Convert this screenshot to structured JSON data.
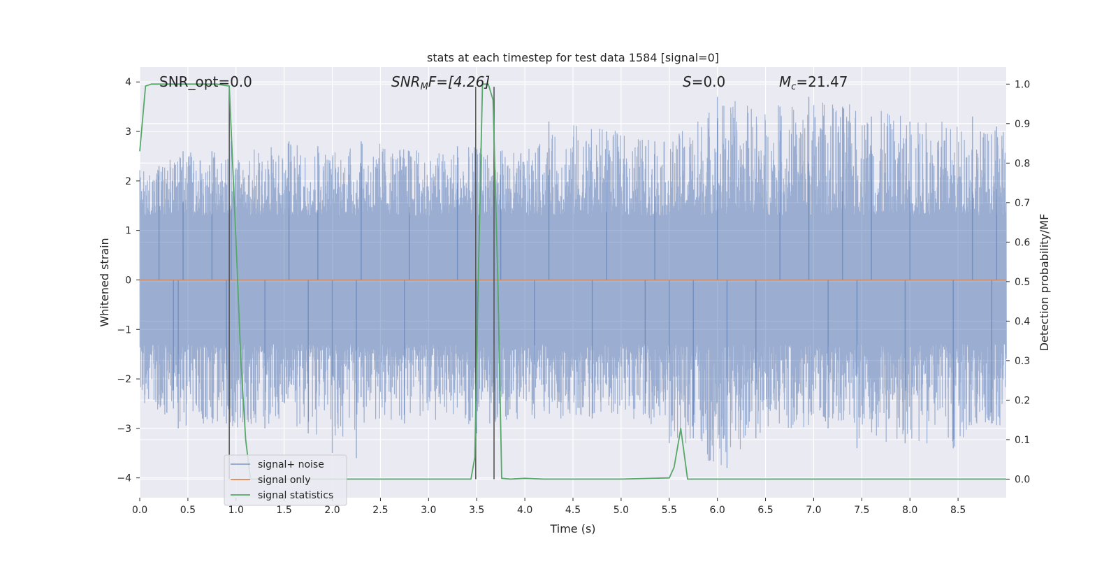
{
  "chart_data": {
    "type": "line",
    "title": "stats at each timestep for test data 1584 [signal=0]",
    "xlabel": "Time (s)",
    "ylabel_left": "Whitened strain",
    "ylabel_right": "Detection probability/MF",
    "xlim": [
      0.0,
      9.0
    ],
    "ylim_left": [
      -4.4,
      4.3
    ],
    "ylim_right": [
      -0.047,
      1.043
    ],
    "x_ticks": [
      0.0,
      0.5,
      1.0,
      1.5,
      2.0,
      2.5,
      3.0,
      3.5,
      4.0,
      4.5,
      5.0,
      5.5,
      6.0,
      6.5,
      7.0,
      7.5,
      8.0,
      8.5
    ],
    "x_tick_labels": [
      "0.0",
      "0.5",
      "1.0",
      "1.5",
      "2.0",
      "2.5",
      "3.0",
      "3.5",
      "4.0",
      "4.5",
      "5.0",
      "5.5",
      "6.0",
      "6.5",
      "7.0",
      "7.5",
      "8.0",
      "8.5"
    ],
    "y_left_ticks": [
      4,
      3,
      2,
      1,
      0,
      -1,
      -2,
      -3,
      -4
    ],
    "y_left_tick_labels": [
      "4",
      "3",
      "2",
      "1",
      "0",
      "−1",
      "−2",
      "−3",
      "−4"
    ],
    "y_right_ticks": [
      1.0,
      0.9,
      0.8,
      0.7,
      0.6,
      0.5,
      0.4,
      0.3,
      0.2,
      0.1,
      0.0
    ],
    "y_right_tick_labels": [
      "1.0",
      "0.9",
      "0.8",
      "0.7",
      "0.6",
      "0.5",
      "0.4",
      "0.3",
      "0.2",
      "0.1",
      "0.0"
    ],
    "grid": true,
    "legend_placement": "lower-left",
    "annotations": {
      "snr_opt": "SNR_opt=0.0",
      "snr_mf_main": "SNR",
      "snr_mf_sub": "M",
      "snr_mf_rest": "F=[4.26]",
      "s_italic": "S",
      "s_rest": "=0.0",
      "mc_main": "M",
      "mc_sub": "c",
      "mc_rest": "=21.47"
    },
    "noise_envelope": {
      "x": [
        0.0,
        0.5,
        1.0,
        1.5,
        2.0,
        2.5,
        3.0,
        3.5,
        4.0,
        4.5,
        5.0,
        5.5,
        6.0,
        6.5,
        7.0,
        7.5,
        8.0,
        8.5,
        9.0
      ],
      "upper": [
        2.3,
        2.6,
        2.6,
        2.8,
        2.7,
        2.8,
        2.6,
        2.7,
        2.6,
        3.2,
        3.0,
        2.8,
        3.7,
        3.5,
        3.7,
        3.5,
        3.3,
        3.2,
        3.0
      ],
      "lower": [
        -2.5,
        -3.0,
        -3.0,
        -2.9,
        -3.3,
        -2.9,
        -2.8,
        -3.0,
        -2.8,
        -2.8,
        -2.7,
        -3.2,
        -3.8,
        -3.1,
        -3.0,
        -3.4,
        -3.3,
        -3.4,
        -2.9
      ]
    },
    "series": [
      {
        "name": "signal+ noise",
        "color": "#4c72b0",
        "axis": "left",
        "spikes": {
          "up": [
            [
              0.2,
              2.3
            ],
            [
              0.45,
              2.6
            ],
            [
              0.75,
              2.6
            ],
            [
              0.95,
              2.8
            ],
            [
              1.55,
              2.8
            ],
            [
              1.85,
              2.7
            ],
            [
              2.3,
              2.8
            ],
            [
              2.8,
              2.6
            ],
            [
              3.3,
              2.7
            ],
            [
              3.75,
              2.6
            ],
            [
              4.25,
              3.2
            ],
            [
              4.85,
              3.0
            ],
            [
              5.35,
              2.8
            ],
            [
              6.0,
              3.7
            ],
            [
              6.65,
              3.5
            ],
            [
              6.95,
              3.7
            ],
            [
              7.3,
              3.5
            ],
            [
              7.6,
              3.3
            ],
            [
              8.0,
              3.2
            ],
            [
              8.65,
              3.3
            ],
            [
              8.9,
              3.1
            ]
          ],
          "down": [
            [
              0.35,
              -2.6
            ],
            [
              0.4,
              -3.0
            ],
            [
              0.9,
              -2.9
            ],
            [
              1.3,
              -3.0
            ],
            [
              1.75,
              -3.1
            ],
            [
              2.0,
              -3.5
            ],
            [
              2.25,
              -3.6
            ],
            [
              2.75,
              -2.9
            ],
            [
              3.5,
              -3.1
            ],
            [
              4.1,
              -2.8
            ],
            [
              4.7,
              -2.8
            ],
            [
              5.25,
              -2.7
            ],
            [
              5.5,
              -3.3
            ],
            [
              5.75,
              -3.2
            ],
            [
              6.1,
              -3.8
            ],
            [
              6.4,
              -3.2
            ],
            [
              7.15,
              -3.0
            ],
            [
              7.45,
              -3.4
            ],
            [
              7.95,
              -3.3
            ],
            [
              8.45,
              -3.4
            ],
            [
              8.85,
              -2.9
            ]
          ]
        }
      },
      {
        "name": "signal only",
        "color": "#dd8452",
        "axis": "left",
        "x": [
          0.0,
          9.0
        ],
        "y": [
          0.0,
          0.0
        ]
      },
      {
        "name": "signal statistics",
        "color": "#55a868",
        "axis": "right",
        "x": [
          0.0,
          0.06,
          0.12,
          0.2,
          0.5,
          0.8,
          0.93,
          1.0,
          1.05,
          1.1,
          1.15,
          1.2,
          3.0,
          3.44,
          3.48,
          3.52,
          3.56,
          3.62,
          3.67,
          3.72,
          3.76,
          3.85,
          4.0,
          4.2,
          5.0,
          5.5,
          5.55,
          5.62,
          5.69,
          5.75,
          6.0,
          7.0,
          8.0,
          8.5,
          9.0
        ],
        "y": [
          0.83,
          0.995,
          1.0,
          1.0,
          1.0,
          1.0,
          0.995,
          0.6,
          0.3,
          0.1,
          0.0,
          0.0,
          0.0,
          0.0,
          0.055,
          0.55,
          1.0,
          1.0,
          0.96,
          0.5,
          0.002,
          0.0,
          0.002,
          0.0,
          0.0,
          0.003,
          0.03,
          0.128,
          0.0,
          0.0,
          0.0,
          0.0,
          0.0,
          0.0,
          0.0
        ]
      }
    ],
    "vertical_lines": {
      "color": "#555555",
      "x": [
        0.93,
        3.49,
        3.68
      ]
    }
  }
}
